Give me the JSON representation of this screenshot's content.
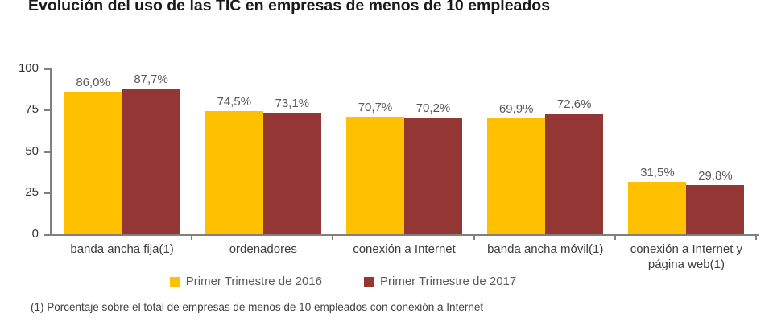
{
  "title": "Evolución del uso de las TIC en empresas de menos de 10 empleados",
  "footnote": "(1) Porcentaje sobre el total de empresas de menos de 10 empleados con conexión a Internet",
  "colors": {
    "series_2016": "#FFC000",
    "series_2017": "#943634",
    "axis": "#808080",
    "value_label_text": "#595959",
    "category_label_text": "#3d3d3d",
    "title_text": "#1a1a1a"
  },
  "chart_data": {
    "type": "bar",
    "title": "Evolución del uso de las TIC en empresas de menos de 10 empleados",
    "categories": [
      "banda ancha fija(1)",
      "ordenadores",
      "conexión a Internet",
      "banda ancha móvil(1)",
      "conexión a Internet y página web(1)"
    ],
    "series": [
      {
        "id": "primer-trimestre-2016",
        "name": "Primer Trimestre de 2016",
        "color": "#FFC000",
        "values": [
          86.0,
          74.5,
          70.7,
          69.9,
          31.5
        ],
        "display_labels": [
          "86,0%",
          "74,5%",
          "70,7%",
          "69,9%",
          "31,5%"
        ]
      },
      {
        "id": "primer-trimestre-2017",
        "name": "Primer Trimestre de 2017",
        "color": "#943634",
        "values": [
          87.7,
          73.1,
          70.2,
          72.6,
          29.8
        ],
        "display_labels": [
          "87,7%",
          "73,1%",
          "70,2%",
          "72,6%",
          "29,8%"
        ]
      }
    ],
    "xlabel": "",
    "ylabel": "",
    "ylim": [
      0,
      100
    ],
    "yticks": [
      0,
      25,
      50,
      75,
      100
    ],
    "grid": false,
    "legend_position": "bottom"
  }
}
